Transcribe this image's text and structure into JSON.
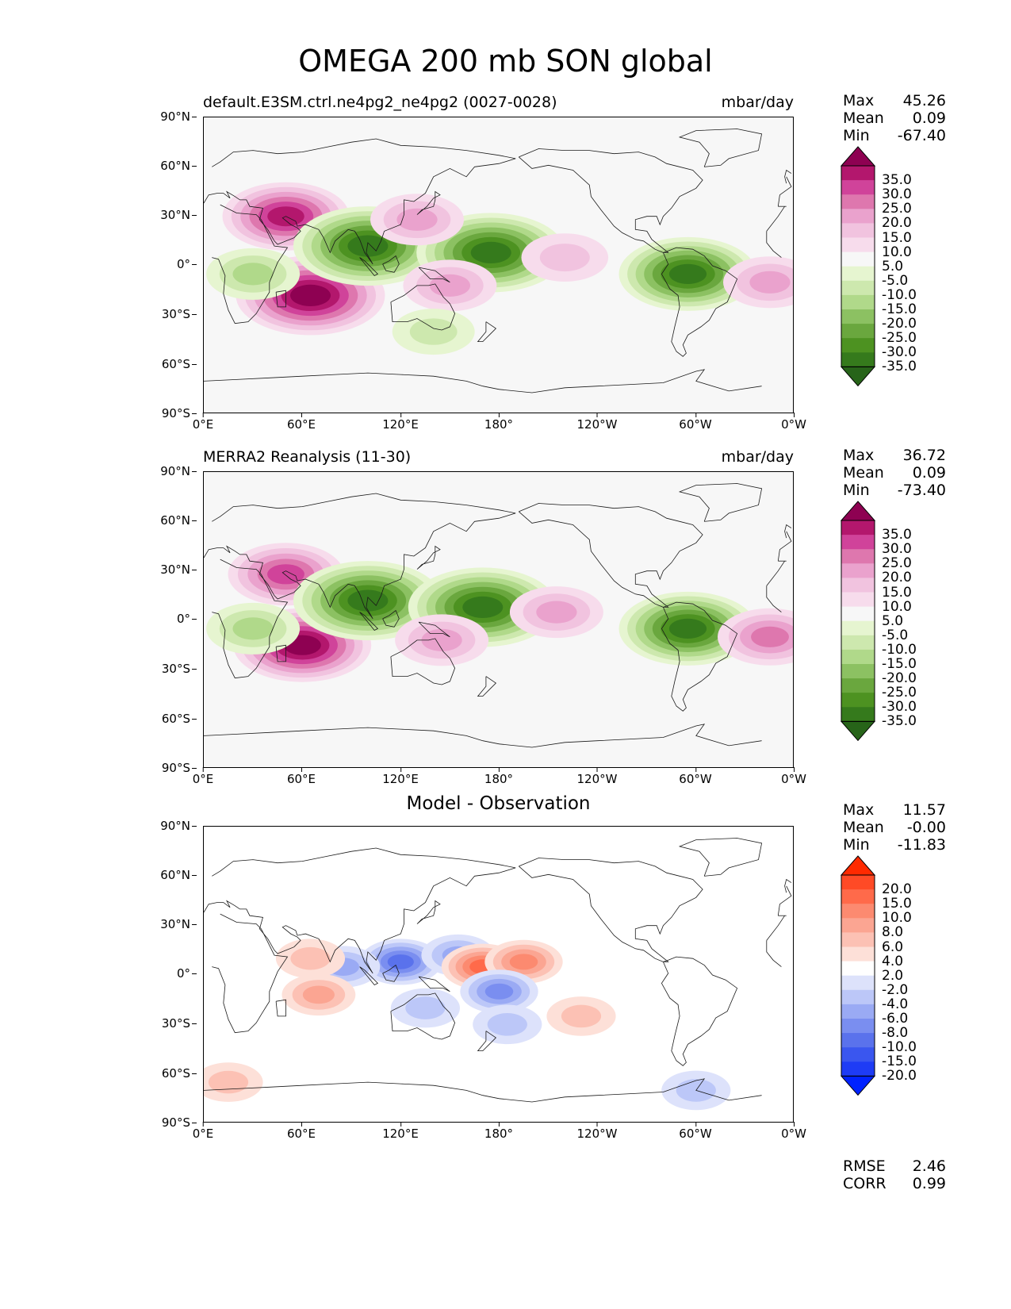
{
  "figure": {
    "title": "OMEGA 200 mb SON global"
  },
  "axes": {
    "yticks": [
      "90°N",
      "60°N",
      "30°N",
      "0°",
      "30°S",
      "60°S",
      "90°S"
    ],
    "xticks": [
      "0°E",
      "60°E",
      "120°E",
      "180°",
      "120°W",
      "60°W",
      "0°W"
    ]
  },
  "panels": [
    {
      "left_title": "default.E3SM.ctrl.ne4pg2_ne4pg2 (0027-0028)",
      "right_title": "mbar/day",
      "center_title": "",
      "stats": {
        "max_label": "Max",
        "max": "45.26",
        "mean_label": "Mean",
        "mean": "0.09",
        "min_label": "Min",
        "min": "-67.40"
      }
    },
    {
      "left_title": "MERRA2 Reanalysis (11-30)",
      "right_title": "mbar/day",
      "center_title": "",
      "stats": {
        "max_label": "Max",
        "max": "36.72",
        "mean_label": "Mean",
        "mean": "0.09",
        "min_label": "Min",
        "min": "-73.40"
      }
    },
    {
      "left_title": "",
      "right_title": "",
      "center_title": "Model - Observation",
      "stats": {
        "max_label": "Max",
        "max": "11.57",
        "mean_label": "Mean",
        "mean": "-0.00",
        "min_label": "Min",
        "min": "-11.83"
      },
      "metrics": {
        "rmse_label": "RMSE",
        "rmse": "2.46",
        "corr_label": "CORR",
        "corr": "0.99"
      }
    }
  ],
  "colorbars": {
    "field": {
      "labels": [
        "35.0",
        "30.0",
        "25.0",
        "20.0",
        "15.0",
        "10.0",
        "5.0",
        "-5.0",
        "-10.0",
        "-15.0",
        "-20.0",
        "-25.0",
        "-30.0",
        "-35.0"
      ],
      "colors": [
        "#8e0152",
        "#b3176d",
        "#d0439a",
        "#de77ae",
        "#eaa2cd",
        "#f1c3df",
        "#f7dcec",
        "#f7f7f7",
        "#e6f5d0",
        "#cde8ae",
        "#b0d98a",
        "#8cc162",
        "#6aa73e",
        "#4d9221",
        "#357a1c",
        "#276419"
      ]
    },
    "diff": {
      "labels": [
        "20.0",
        "15.0",
        "10.0",
        "8.0",
        "6.0",
        "4.0",
        "2.0",
        "-2.0",
        "-4.0",
        "-6.0",
        "-8.0",
        "-10.0",
        "-15.0",
        "-20.0"
      ],
      "colors": [
        "#ff2a00",
        "#ff4a26",
        "#ff6a4a",
        "#fc8a70",
        "#fba592",
        "#fcc1b4",
        "#fde0d8",
        "#ffffff",
        "#dde2fb",
        "#bcc7f8",
        "#9aaaf4",
        "#7a8ef0",
        "#5a72ec",
        "#3a56ef",
        "#1e3cf5",
        "#0022ff"
      ]
    }
  },
  "chart_data": [
    {
      "type": "heatmap",
      "title": "default.E3SM.ctrl.ne4pg2_ne4pg2 (0027-0028)",
      "units": "mbar/day",
      "region": "global",
      "x_range_deg_east": [
        0,
        360
      ],
      "y_range_deg_north": [
        -90,
        90
      ],
      "max": 45.26,
      "mean": 0.09,
      "min": -67.4,
      "contour_levels": [
        -35,
        -30,
        -25,
        -20,
        -15,
        -10,
        -5,
        5,
        10,
        15,
        20,
        25,
        30,
        35
      ],
      "features": [
        {
          "lon": 50,
          "lat": 30,
          "value": 30
        },
        {
          "lon": 65,
          "lat": -18,
          "value": 40
        },
        {
          "lon": 30,
          "lat": -5,
          "value": -15
        },
        {
          "lon": 100,
          "lat": 12,
          "value": -40
        },
        {
          "lon": 175,
          "lat": 8,
          "value": -40
        },
        {
          "lon": 130,
          "lat": 28,
          "value": 15
        },
        {
          "lon": 150,
          "lat": -12,
          "value": 15
        },
        {
          "lon": 295,
          "lat": -5,
          "value": -35
        },
        {
          "lon": 220,
          "lat": 5,
          "value": 12
        },
        {
          "lon": 345,
          "lat": -10,
          "value": 15
        },
        {
          "lon": 140,
          "lat": -40,
          "value": -10
        }
      ]
    },
    {
      "type": "heatmap",
      "title": "MERRA2 Reanalysis (11-30)",
      "units": "mbar/day",
      "region": "global",
      "x_range_deg_east": [
        0,
        360
      ],
      "y_range_deg_north": [
        -90,
        90
      ],
      "max": 36.72,
      "mean": 0.09,
      "min": -73.4,
      "contour_levels": [
        -35,
        -30,
        -25,
        -20,
        -15,
        -10,
        -5,
        5,
        10,
        15,
        20,
        25,
        30,
        35
      ],
      "features": [
        {
          "lon": 50,
          "lat": 28,
          "value": 25
        },
        {
          "lon": 60,
          "lat": -15,
          "value": 35
        },
        {
          "lon": 30,
          "lat": -5,
          "value": -15
        },
        {
          "lon": 100,
          "lat": 12,
          "value": -40
        },
        {
          "lon": 170,
          "lat": 8,
          "value": -40
        },
        {
          "lon": 295,
          "lat": -5,
          "value": -35
        },
        {
          "lon": 215,
          "lat": 5,
          "value": 15
        },
        {
          "lon": 345,
          "lat": -10,
          "value": 20
        },
        {
          "lon": 145,
          "lat": -12,
          "value": 15
        }
      ]
    },
    {
      "type": "heatmap",
      "title": "Model - Observation",
      "region": "global",
      "x_range_deg_east": [
        0,
        360
      ],
      "y_range_deg_north": [
        -90,
        90
      ],
      "max": 11.57,
      "mean": -0.0,
      "min": -11.83,
      "rmse": 2.46,
      "corr": 0.99,
      "contour_levels": [
        -20,
        -15,
        -10,
        -8,
        -6,
        -4,
        -2,
        2,
        4,
        6,
        8,
        10,
        15,
        20
      ],
      "features": [
        {
          "lon": 120,
          "lat": 8,
          "value": -10
        },
        {
          "lon": 85,
          "lat": 5,
          "value": -6
        },
        {
          "lon": 155,
          "lat": 12,
          "value": -6
        },
        {
          "lon": 170,
          "lat": 5,
          "value": 10
        },
        {
          "lon": 195,
          "lat": 8,
          "value": 8
        },
        {
          "lon": 65,
          "lat": 10,
          "value": 4
        },
        {
          "lon": 70,
          "lat": -12,
          "value": 6
        },
        {
          "lon": 180,
          "lat": -10,
          "value": -8
        },
        {
          "lon": 135,
          "lat": -20,
          "value": -4
        },
        {
          "lon": 185,
          "lat": -30,
          "value": -4
        },
        {
          "lon": 230,
          "lat": -25,
          "value": 4
        },
        {
          "lon": 15,
          "lat": -65,
          "value": 4
        },
        {
          "lon": 300,
          "lat": -70,
          "value": -4
        }
      ]
    }
  ]
}
